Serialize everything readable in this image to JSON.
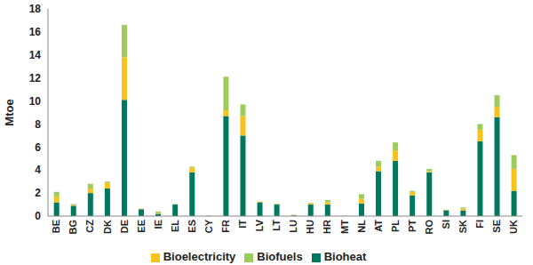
{
  "chart_data": {
    "type": "bar",
    "stacked": true,
    "y_label": "Mtoe",
    "legend": "bottom",
    "grid": false,
    "categories": [
      "BE",
      "BG",
      "CZ",
      "DK",
      "DE",
      "EE",
      "IE",
      "EL",
      "ES",
      "CY",
      "FR",
      "IT",
      "LV",
      "LT",
      "LU",
      "HU",
      "HR",
      "MT",
      "NL",
      "AT",
      "PL",
      "PT",
      "RO",
      "SI",
      "SK",
      "FI",
      "SE",
      "UK"
    ],
    "ylim": [
      0,
      18
    ],
    "yticks": [
      0,
      2,
      4,
      6,
      8,
      10,
      12,
      14,
      16,
      18
    ],
    "series": [
      {
        "name": "Bioheat",
        "color": "#00775f",
        "values": [
          1.2,
          0.9,
          2.0,
          2.4,
          10.1,
          0.6,
          0.2,
          1.0,
          3.8,
          0.02,
          8.7,
          7.0,
          1.2,
          1.0,
          0.05,
          1.0,
          1.0,
          0.01,
          1.1,
          3.9,
          4.8,
          1.8,
          3.8,
          0.5,
          0.5,
          6.5,
          8.6,
          2.2
        ]
      },
      {
        "name": "Bioelectricity",
        "color": "#f7c21a",
        "values": [
          0.5,
          0.05,
          0.4,
          0.5,
          3.7,
          0.05,
          0.05,
          0.0,
          0.4,
          0.0,
          0.5,
          1.7,
          0.05,
          0.02,
          0.02,
          0.1,
          0.2,
          0.0,
          0.4,
          0.4,
          0.9,
          0.3,
          0.1,
          0.03,
          0.15,
          1.0,
          0.9,
          1.9
        ]
      },
      {
        "name": "Biofuels",
        "color": "#9ccc5a",
        "values": [
          0.4,
          0.1,
          0.4,
          0.1,
          2.8,
          0.0,
          0.15,
          0.05,
          0.1,
          0.02,
          2.9,
          1.0,
          0.02,
          0.05,
          0.05,
          0.05,
          0.2,
          0.01,
          0.4,
          0.5,
          0.7,
          0.1,
          0.2,
          0.03,
          0.1,
          0.5,
          1.0,
          1.2
        ]
      }
    ]
  }
}
